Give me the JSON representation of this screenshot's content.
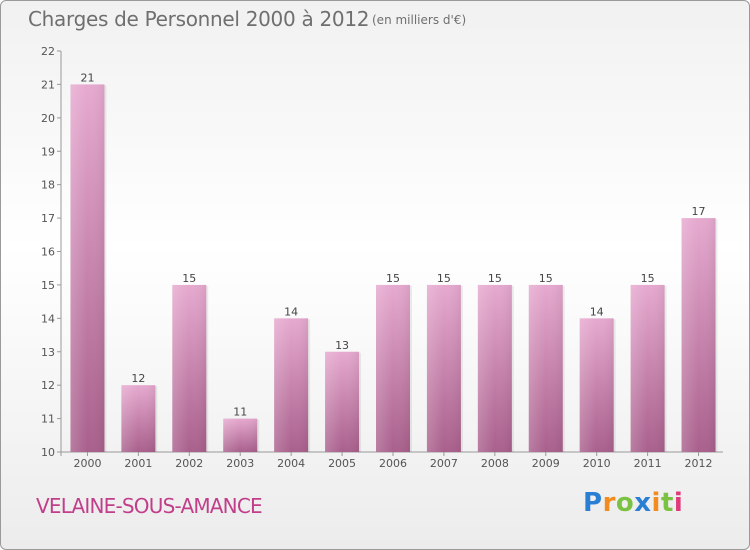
{
  "title": "Charges de Personnel 2000 à 2012",
  "subtitle": "(en milliers d'€)",
  "location": "VELAINE-SOUS-AMANCE",
  "logo": {
    "letters": [
      "P",
      "r",
      "o",
      "x",
      "i",
      "t",
      "i"
    ],
    "colors": [
      "#2a7fd4",
      "#f28c1e",
      "#7cc242",
      "#2a7fd4",
      "#f28c1e",
      "#7cc242",
      "#e03a7a"
    ]
  },
  "colors": {
    "bar_top": "#e6a9cf",
    "bar_bottom": "#a9608c",
    "text": "#6f6f6f",
    "location": "#c13f8a"
  },
  "chart_data": {
    "type": "bar",
    "categories": [
      "2000",
      "2001",
      "2002",
      "2003",
      "2004",
      "2005",
      "2006",
      "2007",
      "2008",
      "2009",
      "2010",
      "2011",
      "2012"
    ],
    "values": [
      21,
      12,
      15,
      11,
      14,
      13,
      15,
      15,
      15,
      15,
      14,
      15,
      17
    ],
    "title": "Charges de Personnel 2000 à 2012",
    "subtitle": "(en milliers d'€)",
    "xlabel": "",
    "ylabel": "",
    "ylim": [
      10,
      22
    ],
    "yticks": [
      10,
      11,
      12,
      13,
      14,
      15,
      16,
      17,
      18,
      19,
      20,
      21,
      22
    ],
    "grid": false,
    "legend": "none"
  }
}
